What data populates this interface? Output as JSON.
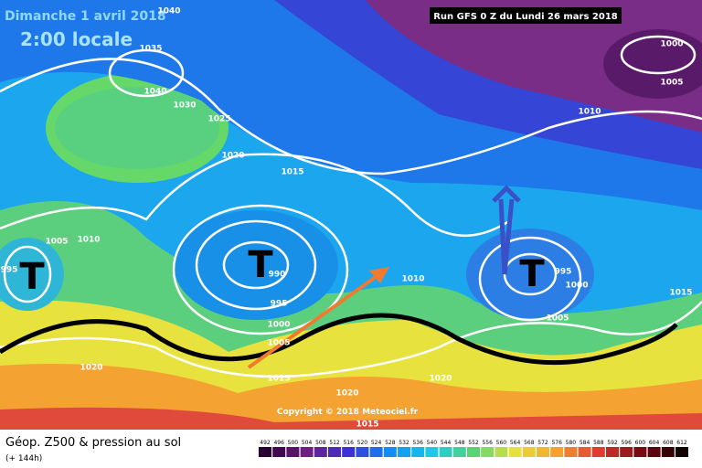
{
  "header": {
    "title": "Dimanche 1 avril 2018",
    "time": "2:00 locale",
    "run": "Run GFS 0 Z du Lundi 26 mars 2018"
  },
  "map": {
    "isobar_labels": [
      1040,
      1035,
      1040,
      1030,
      1025,
      1020,
      1015,
      1010,
      1000,
      1005,
      1005,
      1010,
      995,
      990,
      995,
      1000,
      1005,
      1010,
      1015,
      995,
      1000,
      1005,
      1015,
      1020,
      1020,
      1020,
      1015
    ],
    "lows": [
      "T",
      "T",
      "T"
    ],
    "copyright": "Copyright © 2018 Meteociel.fr"
  },
  "footer": {
    "title": "Géop. Z500 & pression au sol",
    "lead": "(+ 144h)",
    "colorbar": [
      492,
      496,
      500,
      504,
      508,
      512,
      516,
      520,
      524,
      528,
      532,
      536,
      540,
      544,
      548,
      552,
      556,
      560,
      564,
      568,
      572,
      576,
      580,
      584,
      588,
      592,
      596,
      600,
      604,
      608,
      612
    ]
  }
}
